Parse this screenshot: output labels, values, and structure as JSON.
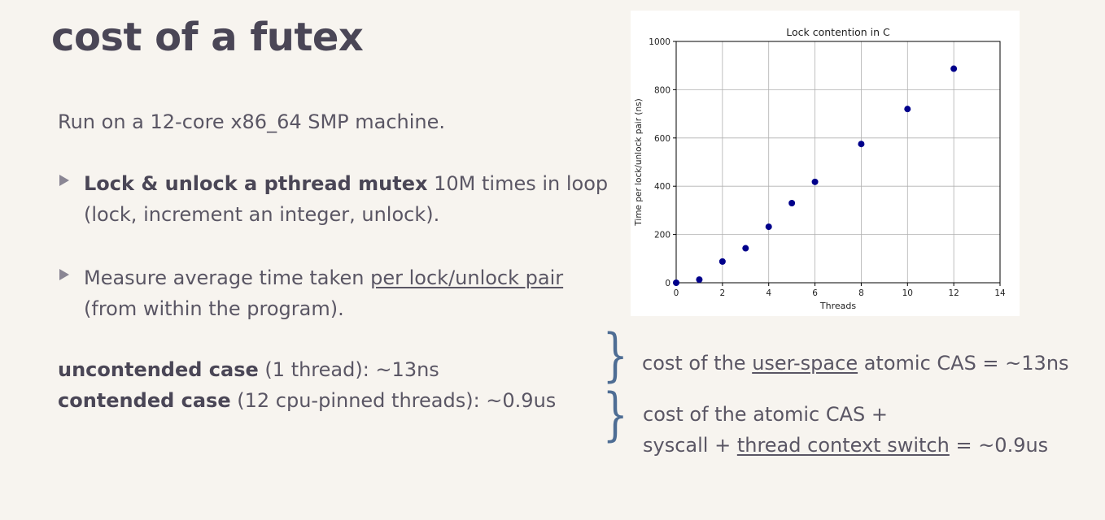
{
  "slide": {
    "title": "cost of a futex",
    "intro": "Run on a 12-core x86_64 SMP machine.",
    "bullet1": {
      "bold": "Lock & unlock a pthread mutex",
      "rest": " 10M times in loop",
      "line2": "(lock, increment an integer, unlock)."
    },
    "bullet2": {
      "text": "Measure average time taken ",
      "underlined": "per lock/unlock pair",
      "line2": "(from within the program)."
    },
    "cases": {
      "uncontended_bold": "uncontended case",
      "uncontended_rest": " (1 thread): ~13ns",
      "contended_bold": "contended case",
      "contended_rest": " (12 cpu-pinned threads): ~0.9us"
    },
    "note1": {
      "pre": "cost of the ",
      "underlined": "user-space",
      "post": " atomic CAS = ~13ns"
    },
    "note2": {
      "line1": "cost of the atomic CAS +",
      "pre": "syscall + ",
      "underlined": "thread context switch",
      "post": " = ~0.9us"
    }
  },
  "chart_data": {
    "type": "scatter",
    "title": "Lock contention in C",
    "xlabel": "Threads",
    "ylabel": "Time per lock/unlock pair (ns)",
    "xlim": [
      0,
      14
    ],
    "ylim": [
      0,
      1000
    ],
    "xticks": [
      0,
      2,
      4,
      6,
      8,
      10,
      12,
      14
    ],
    "yticks": [
      0,
      200,
      400,
      600,
      800,
      1000
    ],
    "grid": true,
    "marker_color": "#00008b",
    "points": [
      {
        "x": 0,
        "y": 0
      },
      {
        "x": 1,
        "y": 13
      },
      {
        "x": 2,
        "y": 88
      },
      {
        "x": 3,
        "y": 143
      },
      {
        "x": 4,
        "y": 232
      },
      {
        "x": 5,
        "y": 330
      },
      {
        "x": 6,
        "y": 418
      },
      {
        "x": 8,
        "y": 575
      },
      {
        "x": 10,
        "y": 720
      },
      {
        "x": 12,
        "y": 887
      }
    ]
  },
  "colors": {
    "background": "#f7f4ef",
    "text": "#5a5664",
    "brace": "#4e6d94"
  }
}
